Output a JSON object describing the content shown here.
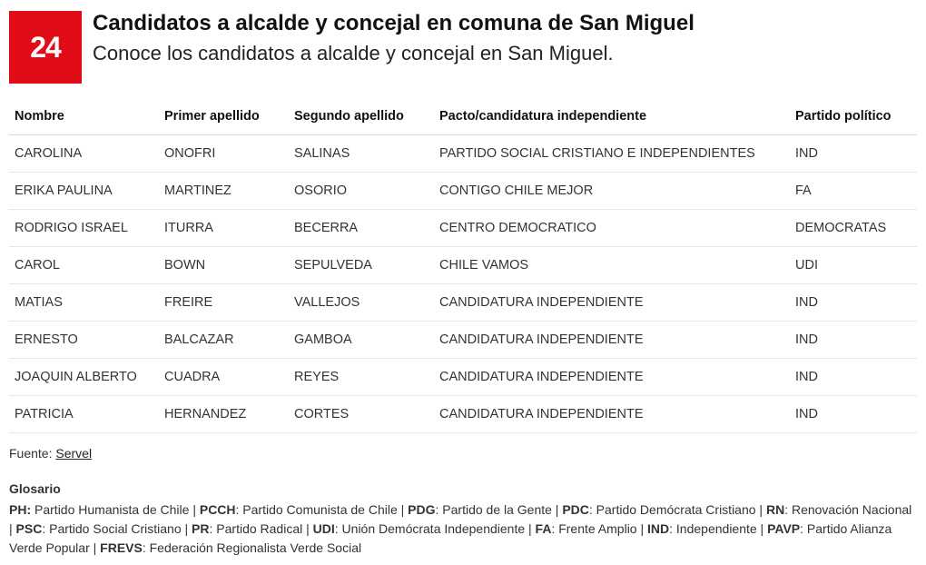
{
  "logo": {
    "text": "24",
    "bg": "#e10b17",
    "fg": "#ffffff"
  },
  "header": {
    "title": "Candidatos a alcalde y concejal en comuna de San Miguel",
    "subtitle": "Conoce los candidatos a alcalde y concejal en San Miguel."
  },
  "table": {
    "columns": [
      {
        "key": "nombre",
        "label": "Nombre",
        "class": "col-nombre"
      },
      {
        "key": "primer",
        "label": "Primer apellido",
        "class": "col-primer"
      },
      {
        "key": "segundo",
        "label": "Segundo apellido",
        "class": "col-segundo"
      },
      {
        "key": "pacto",
        "label": "Pacto/candidatura independiente",
        "class": "col-pacto"
      },
      {
        "key": "partido",
        "label": "Partido político",
        "class": "col-partido"
      }
    ],
    "rows": [
      {
        "nombre": "CAROLINA",
        "primer": "ONOFRI",
        "segundo": "SALINAS",
        "pacto": "PARTIDO SOCIAL CRISTIANO E INDEPENDIENTES",
        "partido": "IND"
      },
      {
        "nombre": "ERIKA PAULINA",
        "primer": "MARTINEZ",
        "segundo": "OSORIO",
        "pacto": "CONTIGO CHILE MEJOR",
        "partido": "FA"
      },
      {
        "nombre": "RODRIGO ISRAEL",
        "primer": "ITURRA",
        "segundo": "BECERRA",
        "pacto": "CENTRO DEMOCRATICO",
        "partido": "DEMOCRATAS"
      },
      {
        "nombre": "CAROL",
        "primer": "BOWN",
        "segundo": "SEPULVEDA",
        "pacto": "CHILE VAMOS",
        "partido": "UDI"
      },
      {
        "nombre": "MATIAS",
        "primer": "FREIRE",
        "segundo": "VALLEJOS",
        "pacto": "CANDIDATURA INDEPENDIENTE",
        "partido": "IND"
      },
      {
        "nombre": "ERNESTO",
        "primer": "BALCAZAR",
        "segundo": "GAMBOA",
        "pacto": "CANDIDATURA INDEPENDIENTE",
        "partido": "IND"
      },
      {
        "nombre": "JOAQUIN ALBERTO",
        "primer": "CUADRA",
        "segundo": "REYES",
        "pacto": "CANDIDATURA INDEPENDIENTE",
        "partido": "IND"
      },
      {
        "nombre": "PATRICIA",
        "primer": "HERNANDEZ",
        "segundo": "CORTES",
        "pacto": "CANDIDATURA INDEPENDIENTE",
        "partido": "IND"
      }
    ],
    "header_border": "#d9d9d9",
    "row_border": "#e6e6e6",
    "font_size": 14.5
  },
  "footer": {
    "fuente_label": "Fuente: ",
    "fuente_link": "Servel",
    "glosario_title": "Glosario",
    "glosario": [
      {
        "k": "PH:",
        "v": " Partido Humanista de Chile | "
      },
      {
        "k": "PCCH",
        "v": ": Partido Comunista de Chile | "
      },
      {
        "k": "PDG",
        "v": ": Partido de la Gente | "
      },
      {
        "k": "PDC",
        "v": ": Partido Demócrata Cristiano | "
      },
      {
        "k": "RN",
        "v": ": Renovación Nacional | "
      },
      {
        "k": "PSC",
        "v": ": Partido Social Cristiano | "
      },
      {
        "k": "PR",
        "v": ": Partido Radical | "
      },
      {
        "k": "UDI",
        "v": ": Unión Demócrata Independiente | "
      },
      {
        "k": "FA",
        "v": ": Frente Amplio | "
      },
      {
        "k": "IND",
        "v": ": Independiente | "
      },
      {
        "k": "PAVP",
        "v": ": Partido Alianza Verde Popular | "
      },
      {
        "k": "FREVS",
        "v": ": Federación Regionalista Verde Social"
      }
    ]
  },
  "colors": {
    "background": "#ffffff",
    "text": "#222222",
    "heading": "#111111"
  }
}
